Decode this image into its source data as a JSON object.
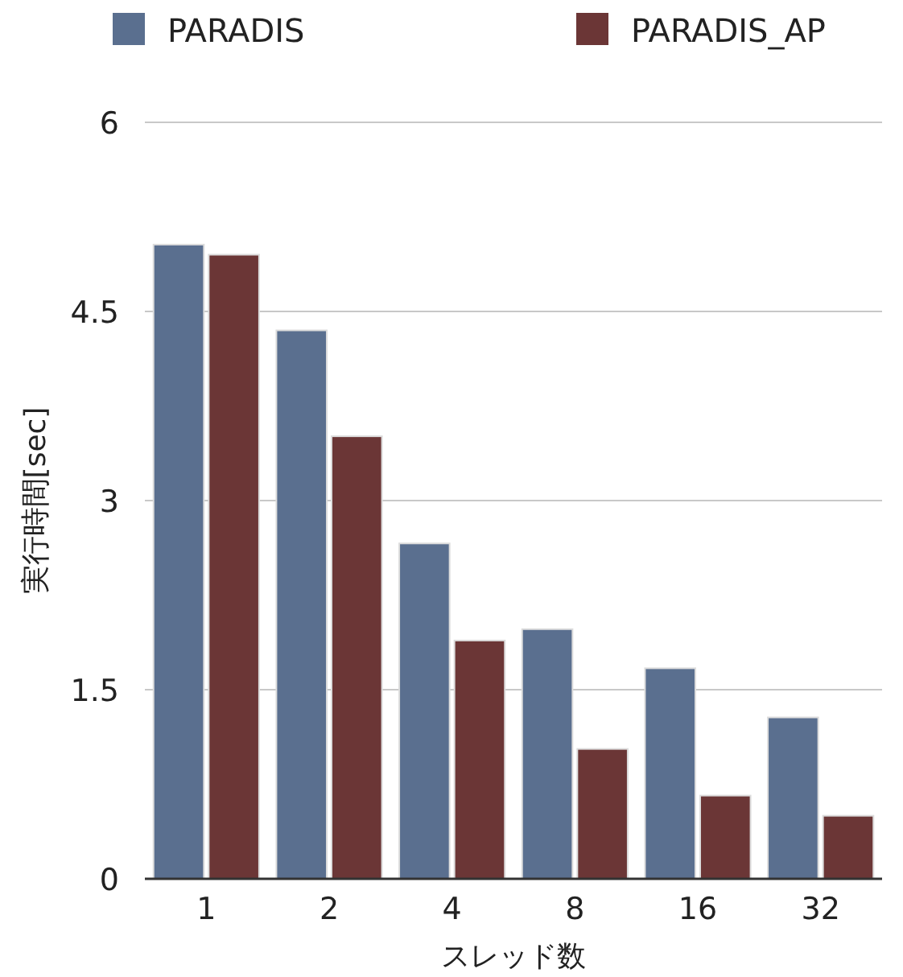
{
  "chart_data": {
    "type": "bar",
    "xlabel": "スレッド数",
    "ylabel": "実行時間[sec]",
    "categories": [
      "1",
      "2",
      "4",
      "8",
      "16",
      "32"
    ],
    "series": [
      {
        "name": "PARADIS",
        "color": "#5a6f8f",
        "values": [
          5.03,
          4.35,
          2.66,
          1.98,
          1.67,
          1.28
        ]
      },
      {
        "name": "PARADIS_AP",
        "color": "#6b3636",
        "values": [
          4.95,
          3.51,
          1.89,
          1.03,
          0.66,
          0.5
        ]
      }
    ],
    "ylim": [
      0,
      6
    ],
    "yticks": [
      0,
      1.5,
      3,
      4.5,
      6
    ],
    "grid": "y",
    "legend": "top"
  }
}
